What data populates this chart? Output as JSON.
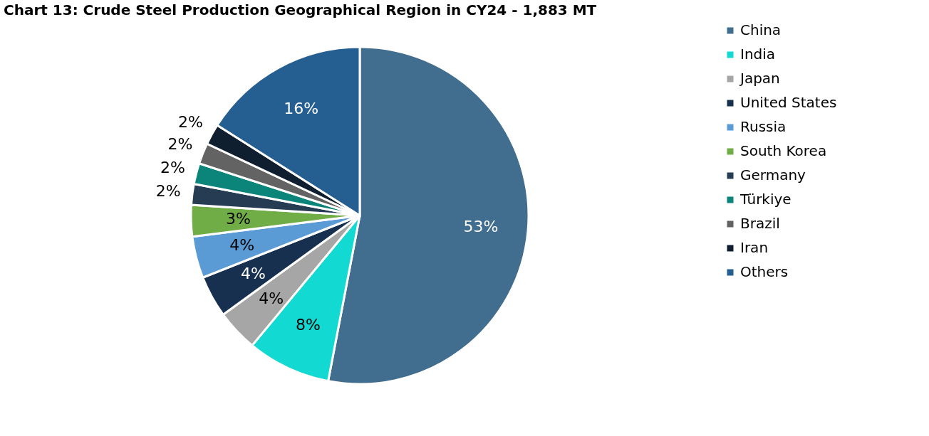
{
  "chart_data": {
    "type": "pie",
    "title": "Chart 13: Crude Steel Production Geographical Region in CY24 - 1,883 MT",
    "categories": [
      "China",
      "India",
      "Japan",
      "United States",
      "Russia",
      "South Korea",
      "Germany",
      "Türkiye",
      "Brazil",
      "Iran",
      "Others"
    ],
    "values": [
      53,
      8,
      4,
      4,
      4,
      3,
      2,
      2,
      2,
      2,
      16
    ],
    "value_labels": [
      "53%",
      "8%",
      "4%",
      "4%",
      "4%",
      "3%",
      "2%",
      "2%",
      "2%",
      "2%",
      "16%"
    ],
    "colors": [
      "#416d8f",
      "#12d9d2",
      "#a6a6a6",
      "#17304f",
      "#5b9bd5",
      "#70ad47",
      "#263c52",
      "#0b857a",
      "#636363",
      "#0f1f30",
      "#255e91"
    ],
    "legend": "right"
  }
}
